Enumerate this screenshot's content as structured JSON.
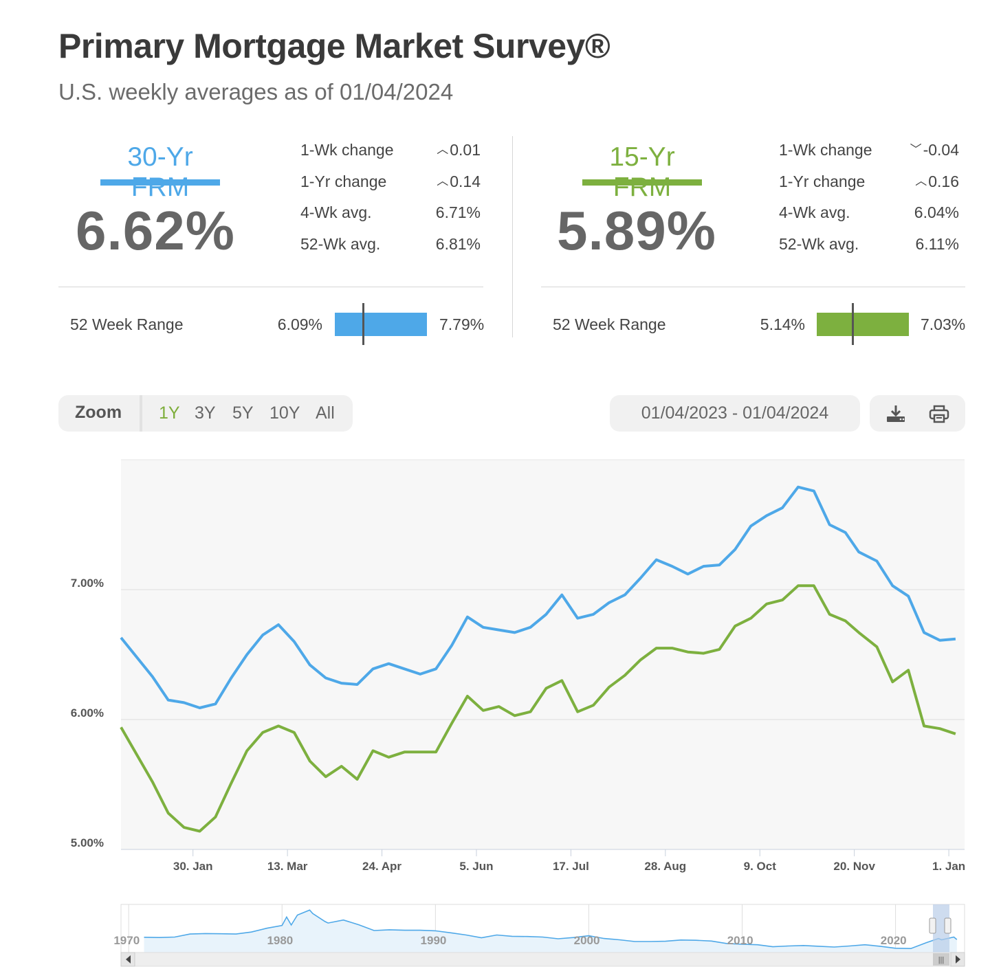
{
  "header": {
    "title": "Primary Mortgage Market Survey®",
    "subtitle": "U.S. weekly averages as of 01/04/2024"
  },
  "colors": {
    "frm30": "#4ea8e8",
    "frm15": "#7db03f",
    "grid": "#dddddd",
    "plot_bg": "#f7f7f7"
  },
  "panels": [
    {
      "name": "30-Yr FRM",
      "rate": "6.62%",
      "stats": [
        {
          "label": "1-Wk change",
          "value": "0.01",
          "direction": "up"
        },
        {
          "label": "1-Yr change",
          "value": "0.14",
          "direction": "up"
        },
        {
          "label": "4-Wk avg.",
          "value": "6.71%"
        },
        {
          "label": "52-Wk avg.",
          "value": "6.81%"
        }
      ],
      "range": {
        "label": "52 Week Range",
        "low": "6.09%",
        "high": "7.79%",
        "current_fraction": 0.31
      }
    },
    {
      "name": "15-Yr FRM",
      "rate": "5.89%",
      "stats": [
        {
          "label": "1-Wk change",
          "value": "-0.04",
          "direction": "down"
        },
        {
          "label": "1-Yr change",
          "value": "0.16",
          "direction": "up"
        },
        {
          "label": "4-Wk avg.",
          "value": "6.04%"
        },
        {
          "label": "52-Wk avg.",
          "value": "6.11%"
        }
      ],
      "range": {
        "label": "52 Week Range",
        "low": "5.14%",
        "high": "7.03%",
        "current_fraction": 0.39
      }
    }
  ],
  "toolbar": {
    "zoom_label": "Zoom",
    "zoom_options": [
      "1Y",
      "3Y",
      "5Y",
      "10Y",
      "All"
    ],
    "zoom_selected": "1Y",
    "date_range": "01/04/2023 - 01/04/2024",
    "download_icon": "download-icon",
    "print_icon": "print-icon"
  },
  "chart_data": {
    "type": "line",
    "x": [
      "2023-01-05",
      "2023-01-12",
      "2023-01-19",
      "2023-01-26",
      "2023-02-02",
      "2023-02-09",
      "2023-02-16",
      "2023-02-23",
      "2023-03-02",
      "2023-03-09",
      "2023-03-16",
      "2023-03-23",
      "2023-03-30",
      "2023-04-06",
      "2023-04-13",
      "2023-04-20",
      "2023-04-27",
      "2023-05-04",
      "2023-05-11",
      "2023-05-18",
      "2023-05-25",
      "2023-06-01",
      "2023-06-08",
      "2023-06-15",
      "2023-06-22",
      "2023-06-29",
      "2023-07-06",
      "2023-07-13",
      "2023-07-20",
      "2023-07-27",
      "2023-08-03",
      "2023-08-10",
      "2023-08-17",
      "2023-08-24",
      "2023-08-31",
      "2023-09-07",
      "2023-09-14",
      "2023-09-21",
      "2023-09-28",
      "2023-10-05",
      "2023-10-12",
      "2023-10-19",
      "2023-10-26",
      "2023-11-02",
      "2023-11-09",
      "2023-11-16",
      "2023-11-22",
      "2023-11-30",
      "2023-12-07",
      "2023-12-14",
      "2023-12-21",
      "2023-12-28",
      "2024-01-04"
    ],
    "series": [
      {
        "name": "30-Yr FRM",
        "values": [
          6.48,
          6.33,
          6.15,
          6.13,
          6.09,
          6.12,
          6.32,
          6.5,
          6.65,
          6.73,
          6.6,
          6.42,
          6.32,
          6.28,
          6.27,
          6.39,
          6.43,
          6.39,
          6.35,
          6.39,
          6.57,
          6.79,
          6.71,
          6.69,
          6.67,
          6.71,
          6.81,
          6.96,
          6.78,
          6.81,
          6.9,
          6.96,
          7.09,
          7.23,
          7.18,
          7.12,
          7.18,
          7.19,
          7.31,
          7.49,
          7.57,
          7.63,
          7.79,
          7.76,
          7.5,
          7.44,
          7.29,
          7.22,
          7.03,
          6.95,
          6.67,
          6.61,
          6.62
        ]
      },
      {
        "name": "15-Yr FRM",
        "values": [
          5.73,
          5.52,
          5.28,
          5.17,
          5.14,
          5.25,
          5.51,
          5.76,
          5.9,
          5.95,
          5.9,
          5.68,
          5.56,
          5.64,
          5.54,
          5.76,
          5.71,
          5.75,
          5.75,
          5.75,
          5.97,
          6.18,
          6.07,
          6.1,
          6.03,
          6.06,
          6.24,
          6.3,
          6.06,
          6.11,
          6.25,
          6.34,
          6.46,
          6.55,
          6.55,
          6.52,
          6.51,
          6.54,
          6.72,
          6.78,
          6.89,
          6.92,
          7.03,
          7.03,
          6.81,
          6.76,
          6.67,
          6.56,
          6.29,
          6.38,
          5.95,
          5.93,
          5.89
        ]
      }
    ],
    "x_ticks": [
      "30. Jan",
      "13. Mar",
      "24. Apr",
      "5. Jun",
      "17. Jul",
      "28. Aug",
      "9. Oct",
      "20. Nov",
      "1. Jan"
    ],
    "x_tick_dates": [
      "2023-01-30",
      "2023-03-13",
      "2023-04-24",
      "2023-06-05",
      "2023-07-17",
      "2023-08-28",
      "2023-10-09",
      "2023-11-20",
      "2024-01-01"
    ],
    "x_range": [
      "2022-12-29",
      "2024-01-08"
    ],
    "y_ticks": [
      "5.00%",
      "6.00%",
      "7.00%"
    ],
    "y_tick_values": [
      5,
      6,
      7
    ],
    "ylim": [
      5.0,
      8.0
    ],
    "grid": true
  },
  "navigator": {
    "labels": [
      "1970",
      "1980",
      "1990",
      "2000",
      "2010",
      "2020"
    ],
    "label_years": [
      1970,
      1980,
      1990,
      2000,
      2010,
      2020
    ],
    "year_range": [
      1969.5,
      2024.5
    ],
    "history_30yr": [
      [
        1971,
        7.5
      ],
      [
        1972,
        7.4
      ],
      [
        1973,
        7.6
      ],
      [
        1974,
        8.8
      ],
      [
        1975,
        9.0
      ],
      [
        1976,
        8.9
      ],
      [
        1977,
        8.8
      ],
      [
        1978,
        9.6
      ],
      [
        1979,
        11.1
      ],
      [
        1980,
        12.2
      ],
      [
        1980.3,
        15.6
      ],
      [
        1980.6,
        12.4
      ],
      [
        1981,
        16.4
      ],
      [
        1981.8,
        18.4
      ],
      [
        1982,
        17.0
      ],
      [
        1982.8,
        13.8
      ],
      [
        1983,
        13.2
      ],
      [
        1984,
        14.4
      ],
      [
        1985,
        12.5
      ],
      [
        1986,
        10.2
      ],
      [
        1987,
        10.5
      ],
      [
        1988,
        10.3
      ],
      [
        1989,
        10.3
      ],
      [
        1990,
        10.1
      ],
      [
        1991,
        9.3
      ],
      [
        1992,
        8.4
      ],
      [
        1993,
        7.3
      ],
      [
        1994,
        8.4
      ],
      [
        1995,
        7.9
      ],
      [
        1996,
        7.8
      ],
      [
        1997,
        7.6
      ],
      [
        1998,
        6.9
      ],
      [
        1999,
        7.4
      ],
      [
        2000,
        8.1
      ],
      [
        2001,
        7.0
      ],
      [
        2002,
        6.5
      ],
      [
        2003,
        5.8
      ],
      [
        2004,
        5.8
      ],
      [
        2005,
        5.9
      ],
      [
        2006,
        6.4
      ],
      [
        2007,
        6.3
      ],
      [
        2008,
        6.0
      ],
      [
        2009,
        5.0
      ],
      [
        2010,
        4.7
      ],
      [
        2011,
        4.5
      ],
      [
        2012,
        3.7
      ],
      [
        2013,
        4.0
      ],
      [
        2014,
        4.2
      ],
      [
        2015,
        3.9
      ],
      [
        2016,
        3.6
      ],
      [
        2017,
        4.0
      ],
      [
        2018,
        4.5
      ],
      [
        2019,
        3.9
      ],
      [
        2020,
        3.1
      ],
      [
        2021,
        3.0
      ],
      [
        2022,
        5.3
      ],
      [
        2022.8,
        7.0
      ],
      [
        2023,
        6.5
      ],
      [
        2023.8,
        7.6
      ],
      [
        2024,
        6.6
      ]
    ]
  }
}
